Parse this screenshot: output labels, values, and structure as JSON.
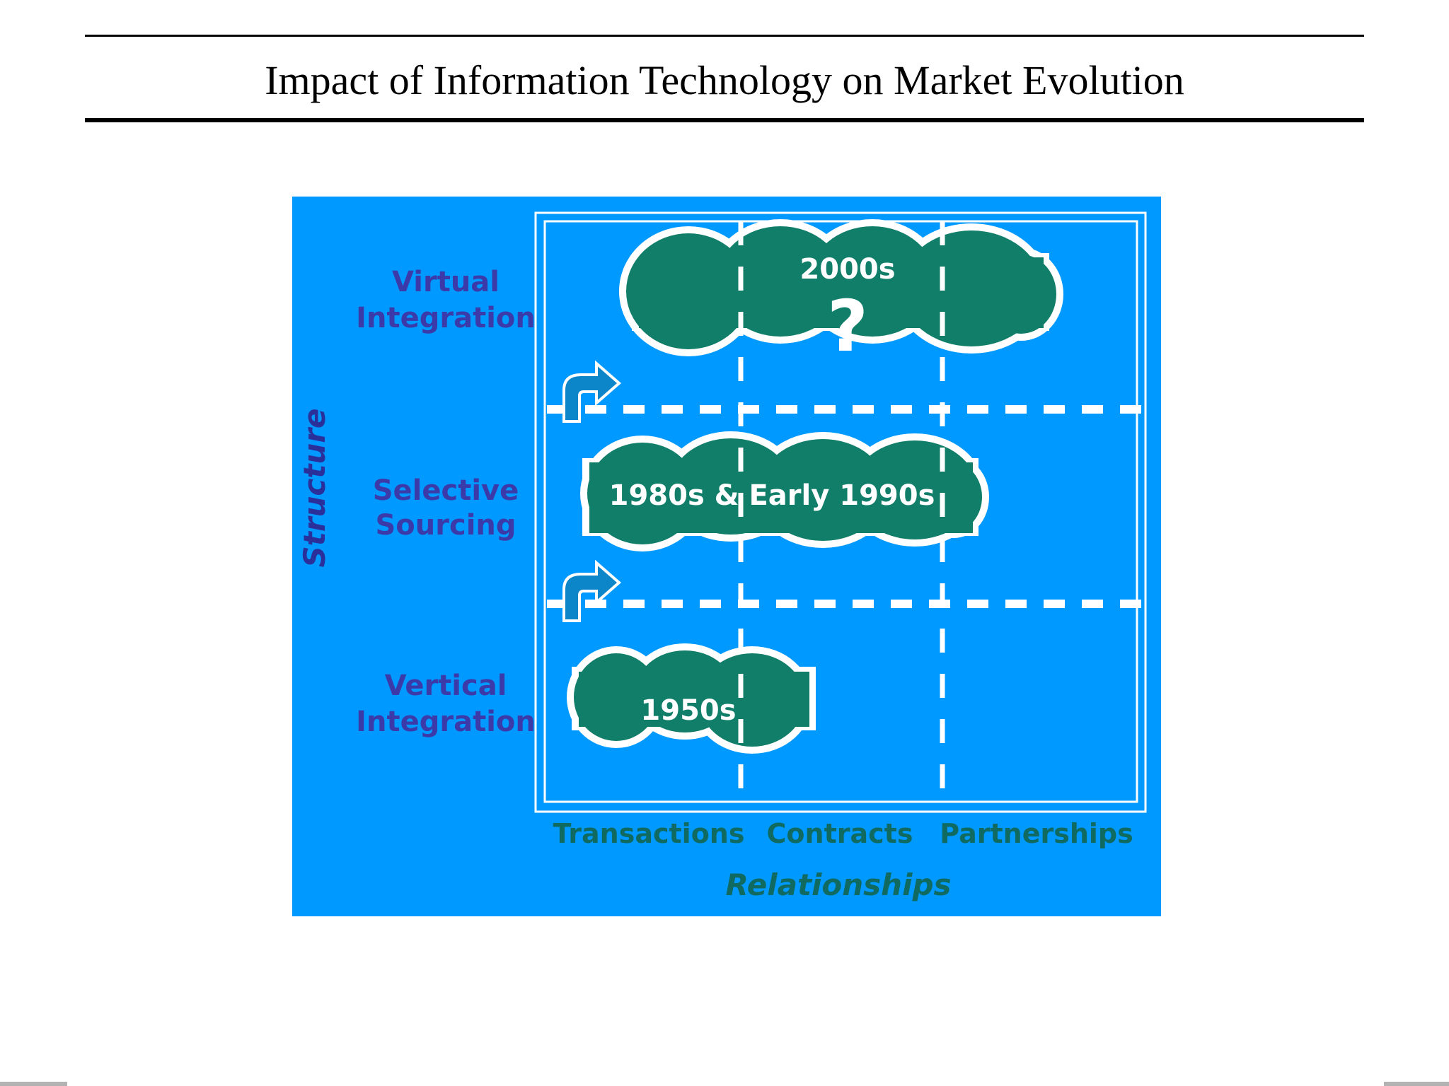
{
  "page": {
    "title": "Impact of Information Technology on Market Evolution"
  },
  "diagram": {
    "y_axis_label": "Structure",
    "x_axis_label": "Relationships",
    "rows": [
      {
        "line1": "Virtual",
        "line2": "Integration"
      },
      {
        "line1": "Selective",
        "line2": "Sourcing"
      },
      {
        "line1": "Vertical",
        "line2": "Integration"
      }
    ],
    "columns": [
      "Transactions",
      "Contracts",
      "Partnerships"
    ],
    "clouds": [
      {
        "era": "2000s",
        "note": "?"
      },
      {
        "era": "1980s & Early 1990s"
      },
      {
        "era": "1950s"
      }
    ],
    "colors": {
      "panel": "#0099ff",
      "cloud_fill": "#117e6a",
      "row_label": "#3b3aa8",
      "axis_label": "#2b2f9a",
      "column_label": "#106a60",
      "lines": "#ffffff",
      "arrow": "#0d86c9"
    },
    "arrow_icons": [
      "curved-up-right-arrow-icon",
      "curved-up-right-arrow-icon"
    ]
  }
}
